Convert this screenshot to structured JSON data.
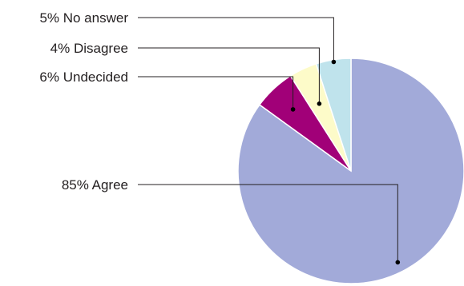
{
  "chart_data": {
    "type": "pie",
    "title": "",
    "slices": [
      {
        "label": "85% Agree",
        "value": 85,
        "color": "#a2aad9"
      },
      {
        "label": "6% Undecided",
        "value": 6,
        "color": "#a10078"
      },
      {
        "label": "4% Disagree",
        "value": 4,
        "color": "#fdfbc9"
      },
      {
        "label": "5% No answer",
        "value": 5,
        "color": "#bfe3ec"
      }
    ],
    "legend": "none",
    "labels": "callout-left"
  }
}
